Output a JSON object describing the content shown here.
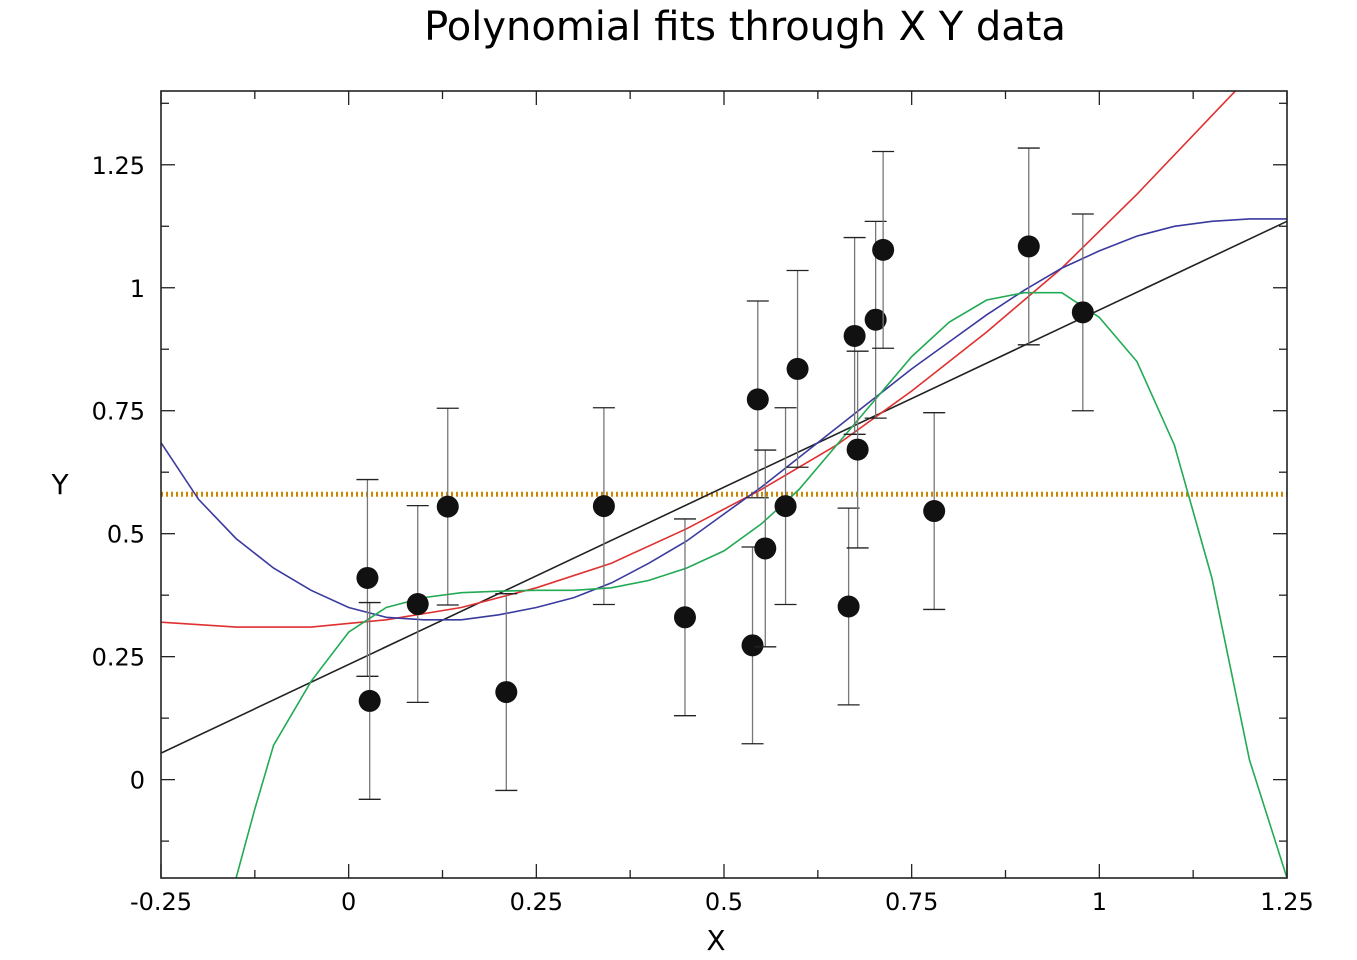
{
  "chart_data": {
    "type": "scatter",
    "title": "Polynomial fits through X Y data",
    "xlabel": "X",
    "ylabel": "Y",
    "xlim": [
      -0.25,
      1.25
    ],
    "ylim": [
      -0.2,
      1.4
    ],
    "x_ticks": [
      -0.25,
      0,
      0.25,
      0.5,
      0.75,
      1,
      1.25
    ],
    "x_tick_labels": [
      "-0.25",
      "0",
      "0.25",
      "0.5",
      "0.75",
      "1",
      "1.25"
    ],
    "y_ticks": [
      0,
      0.25,
      0.5,
      0.75,
      1,
      1.25
    ],
    "y_tick_labels": [
      "0",
      "0.25",
      "0.5",
      "0.75",
      "1",
      "1.25"
    ],
    "grid": false,
    "points": [
      {
        "x": 0.025,
        "y": 0.41,
        "err": 0.2
      },
      {
        "x": 0.028,
        "y": 0.16,
        "err": 0.2
      },
      {
        "x": 0.092,
        "y": 0.357,
        "err": 0.2
      },
      {
        "x": 0.132,
        "y": 0.555,
        "err": 0.2
      },
      {
        "x": 0.21,
        "y": 0.178,
        "err": 0.2
      },
      {
        "x": 0.34,
        "y": 0.556,
        "err": 0.2
      },
      {
        "x": 0.448,
        "y": 0.33,
        "err": 0.2
      },
      {
        "x": 0.538,
        "y": 0.273,
        "err": 0.2
      },
      {
        "x": 0.545,
        "y": 0.773,
        "err": 0.2
      },
      {
        "x": 0.555,
        "y": 0.47,
        "err": 0.2
      },
      {
        "x": 0.582,
        "y": 0.556,
        "err": 0.2
      },
      {
        "x": 0.598,
        "y": 0.835,
        "err": 0.2
      },
      {
        "x": 0.666,
        "y": 0.352,
        "err": 0.2
      },
      {
        "x": 0.674,
        "y": 0.902,
        "err": 0.2
      },
      {
        "x": 0.678,
        "y": 0.671,
        "err": 0.2
      },
      {
        "x": 0.702,
        "y": 0.935,
        "err": 0.2
      },
      {
        "x": 0.712,
        "y": 1.077,
        "err": 0.2
      },
      {
        "x": 0.78,
        "y": 0.546,
        "err": 0.2
      },
      {
        "x": 0.906,
        "y": 1.084,
        "err": 0.2
      },
      {
        "x": 0.978,
        "y": 0.95,
        "err": 0.2
      }
    ],
    "fits": [
      {
        "degree": 0,
        "color": "#cc8800",
        "style": "dotted",
        "x": [
          -0.25,
          1.25
        ],
        "y": [
          0.58,
          0.58
        ]
      },
      {
        "degree": 1,
        "color": "#222222",
        "style": "solid",
        "x": [
          -0.25,
          1.25
        ],
        "y": [
          0.054,
          1.135
        ]
      },
      {
        "degree": 2,
        "color": "#e03030",
        "style": "solid",
        "x": [
          -0.25,
          -0.15,
          -0.05,
          0.05,
          0.15,
          0.25,
          0.35,
          0.45,
          0.55,
          0.65,
          0.75,
          0.85,
          0.95,
          1.05,
          1.15,
          1.25
        ],
        "y": [
          0.32,
          0.31,
          0.31,
          0.325,
          0.35,
          0.39,
          0.44,
          0.51,
          0.59,
          0.68,
          0.79,
          0.91,
          1.04,
          1.19,
          1.35,
          1.51
        ]
      },
      {
        "degree": 3,
        "color": "#3a3aa0",
        "style": "solid",
        "x": [
          -0.25,
          -0.2,
          -0.15,
          -0.1,
          -0.05,
          0.0,
          0.05,
          0.1,
          0.15,
          0.2,
          0.25,
          0.3,
          0.35,
          0.4,
          0.45,
          0.5,
          0.55,
          0.6,
          0.65,
          0.7,
          0.75,
          0.8,
          0.85,
          0.9,
          0.95,
          1.0,
          1.05,
          1.1,
          1.15,
          1.2,
          1.25
        ],
        "y": [
          0.685,
          0.57,
          0.49,
          0.43,
          0.385,
          0.35,
          0.33,
          0.325,
          0.325,
          0.335,
          0.35,
          0.37,
          0.4,
          0.44,
          0.485,
          0.54,
          0.595,
          0.655,
          0.715,
          0.775,
          0.835,
          0.89,
          0.945,
          0.995,
          1.04,
          1.075,
          1.105,
          1.125,
          1.135,
          1.14,
          1.14
        ]
      },
      {
        "degree": 4,
        "color": "#22aa55",
        "style": "solid",
        "x": [
          -0.15,
          -0.125,
          -0.1,
          -0.05,
          0.0,
          0.05,
          0.1,
          0.15,
          0.2,
          0.25,
          0.3,
          0.35,
          0.4,
          0.45,
          0.5,
          0.55,
          0.6,
          0.65,
          0.7,
          0.75,
          0.8,
          0.85,
          0.9,
          0.95,
          1.0,
          1.05,
          1.1,
          1.15,
          1.2,
          1.25
        ],
        "y": [
          -0.2,
          -0.06,
          0.07,
          0.2,
          0.3,
          0.35,
          0.37,
          0.38,
          0.383,
          0.385,
          0.385,
          0.39,
          0.405,
          0.43,
          0.465,
          0.52,
          0.59,
          0.68,
          0.77,
          0.86,
          0.93,
          0.975,
          0.99,
          0.99,
          0.94,
          0.85,
          0.68,
          0.41,
          0.04,
          -0.2
        ]
      }
    ]
  }
}
